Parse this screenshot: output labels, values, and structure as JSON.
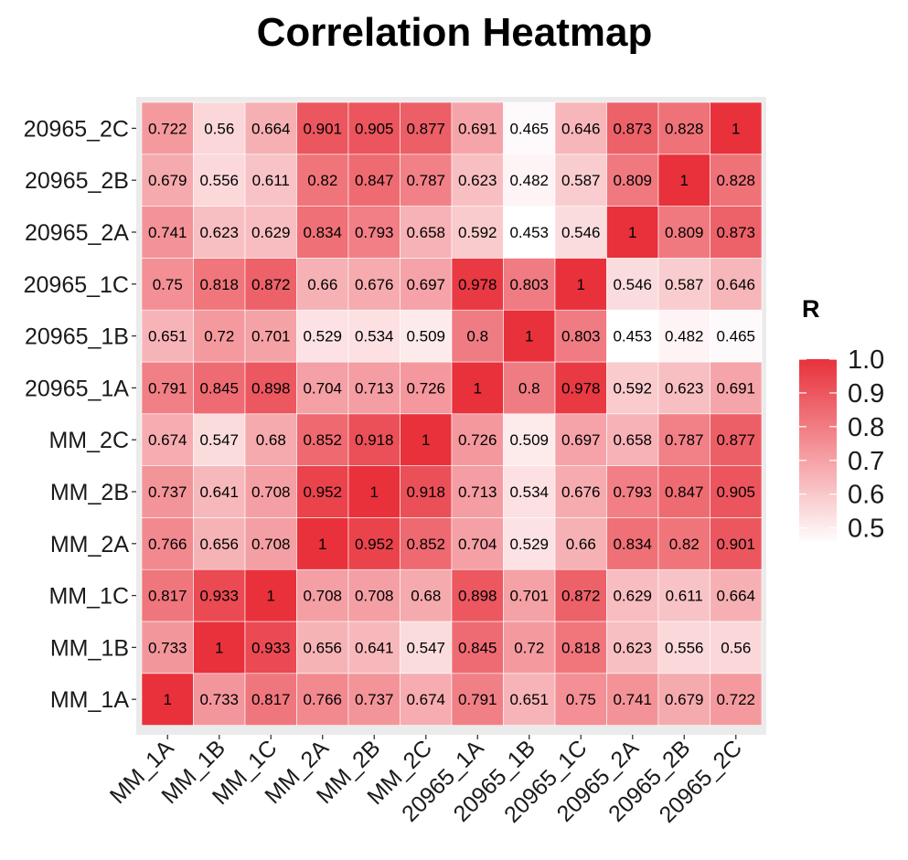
{
  "chart_data": {
    "type": "heatmap",
    "title": "Correlation Heatmap",
    "x_labels": [
      "MM_1A",
      "MM_1B",
      "MM_1C",
      "MM_2A",
      "MM_2B",
      "MM_2C",
      "20965_1A",
      "20965_1B",
      "20965_1C",
      "20965_2A",
      "20965_2B",
      "20965_2C"
    ],
    "y_labels": [
      "MM_1A",
      "MM_1B",
      "MM_1C",
      "MM_2A",
      "MM_2B",
      "MM_2C",
      "20965_1A",
      "20965_1B",
      "20965_1C",
      "20965_2A",
      "20965_2B",
      "20965_2C"
    ],
    "values": [
      [
        1,
        0.733,
        0.817,
        0.766,
        0.737,
        0.674,
        0.791,
        0.651,
        0.75,
        0.741,
        0.679,
        0.722
      ],
      [
        0.733,
        1,
        0.933,
        0.656,
        0.641,
        0.547,
        0.845,
        0.72,
        0.818,
        0.623,
        0.556,
        0.56
      ],
      [
        0.817,
        0.933,
        1,
        0.708,
        0.708,
        0.68,
        0.898,
        0.701,
        0.872,
        0.629,
        0.611,
        0.664
      ],
      [
        0.766,
        0.656,
        0.708,
        1,
        0.952,
        0.852,
        0.704,
        0.529,
        0.66,
        0.834,
        0.82,
        0.901
      ],
      [
        0.737,
        0.641,
        0.708,
        0.952,
        1,
        0.918,
        0.713,
        0.534,
        0.676,
        0.793,
        0.847,
        0.905
      ],
      [
        0.674,
        0.547,
        0.68,
        0.852,
        0.918,
        1,
        0.726,
        0.509,
        0.697,
        0.658,
        0.787,
        0.877
      ],
      [
        0.791,
        0.845,
        0.898,
        0.704,
        0.713,
        0.726,
        1,
        0.8,
        0.978,
        0.592,
        0.623,
        0.691
      ],
      [
        0.651,
        0.72,
        0.701,
        0.529,
        0.534,
        0.509,
        0.8,
        1,
        0.803,
        0.453,
        0.482,
        0.465
      ],
      [
        0.75,
        0.818,
        0.872,
        0.66,
        0.676,
        0.697,
        0.978,
        0.803,
        1,
        0.546,
        0.587,
        0.646
      ],
      [
        0.741,
        0.623,
        0.629,
        0.834,
        0.793,
        0.658,
        0.592,
        0.453,
        0.546,
        1,
        0.809,
        0.873
      ],
      [
        0.679,
        0.556,
        0.611,
        0.82,
        0.847,
        0.787,
        0.623,
        0.482,
        0.587,
        0.809,
        1,
        0.828
      ],
      [
        0.722,
        0.56,
        0.664,
        0.901,
        0.905,
        0.877,
        0.691,
        0.465,
        0.646,
        0.873,
        0.828,
        1
      ]
    ],
    "value_labels": [
      [
        "1",
        "0.733",
        "0.817",
        "0.766",
        "0.737",
        "0.674",
        "0.791",
        "0.651",
        "0.75",
        "0.741",
        "0.679",
        "0.722"
      ],
      [
        "0.733",
        "1",
        "0.933",
        "0.656",
        "0.641",
        "0.547",
        "0.845",
        "0.72",
        "0.818",
        "0.623",
        "0.556",
        "0.56"
      ],
      [
        "0.817",
        "0.933",
        "1",
        "0.708",
        "0.708",
        "0.68",
        "0.898",
        "0.701",
        "0.872",
        "0.629",
        "0.611",
        "0.664"
      ],
      [
        "0.766",
        "0.656",
        "0.708",
        "1",
        "0.952",
        "0.852",
        "0.704",
        "0.529",
        "0.66",
        "0.834",
        "0.82",
        "0.901"
      ],
      [
        "0.737",
        "0.641",
        "0.708",
        "0.952",
        "1",
        "0.918",
        "0.713",
        "0.534",
        "0.676",
        "0.793",
        "0.847",
        "0.905"
      ],
      [
        "0.674",
        "0.547",
        "0.68",
        "0.852",
        "0.918",
        "1",
        "0.726",
        "0.509",
        "0.697",
        "0.658",
        "0.787",
        "0.877"
      ],
      [
        "0.791",
        "0.845",
        "0.898",
        "0.704",
        "0.713",
        "0.726",
        "1",
        "0.8",
        "0.978",
        "0.592",
        "0.623",
        "0.691"
      ],
      [
        "0.651",
        "0.72",
        "0.701",
        "0.529",
        "0.534",
        "0.509",
        "0.8",
        "1",
        "0.803",
        "0.453",
        "0.482",
        "0.465"
      ],
      [
        "0.75",
        "0.818",
        "0.872",
        "0.66",
        "0.676",
        "0.697",
        "0.978",
        "0.803",
        "1",
        "0.546",
        "0.587",
        "0.646"
      ],
      [
        "0.741",
        "0.623",
        "0.629",
        "0.834",
        "0.793",
        "0.658",
        "0.592",
        "0.453",
        "0.546",
        "1",
        "0.809",
        "0.873"
      ],
      [
        "0.679",
        "0.556",
        "0.611",
        "0.82",
        "0.847",
        "0.787",
        "0.623",
        "0.482",
        "0.587",
        "0.809",
        "1",
        "0.828"
      ],
      [
        "0.722",
        "0.56",
        "0.664",
        "0.901",
        "0.905",
        "0.877",
        "0.691",
        "0.465",
        "0.646",
        "0.873",
        "0.828",
        "1"
      ]
    ],
    "color_scale": {
      "low": 0.453,
      "high": 1.0,
      "low_color": "#ffffff",
      "high_color": "#e8313b"
    },
    "legend": {
      "title": "R",
      "placement": "right",
      "ticks": [
        1.0,
        0.9,
        0.8,
        0.7,
        0.6,
        0.5
      ],
      "tick_labels": [
        "1.0",
        "0.9",
        "0.8",
        "0.7",
        "0.6",
        "0.5"
      ]
    },
    "panel_background": "#ebebeb",
    "grid": false
  }
}
